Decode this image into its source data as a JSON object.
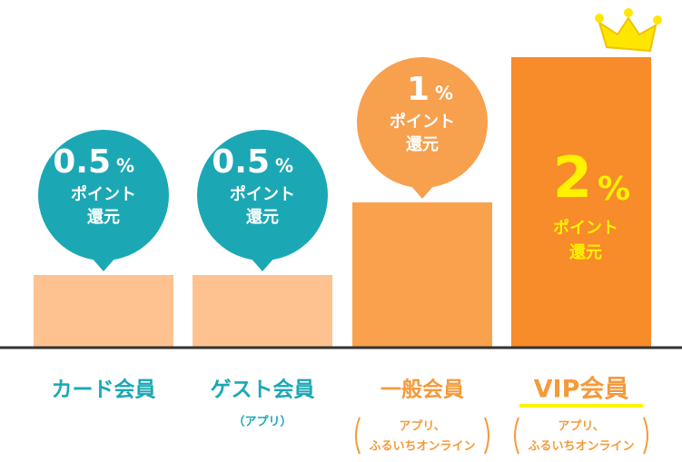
{
  "chart_data": {
    "type": "bar",
    "categories": [
      "カード会員",
      "ゲスト会員",
      "一般会員",
      "VIP会員"
    ],
    "values": [
      0.5,
      0.5,
      1,
      2
    ],
    "value_unit": "%",
    "value_caption": [
      "ポイント",
      "還元"
    ],
    "notes": [
      null,
      [
        "（アプリ）"
      ],
      [
        "アプリ、",
        "ふるいちオンライン"
      ],
      [
        "アプリ、",
        "ふるいちオンライン"
      ]
    ],
    "colors": [
      "#fdc28f",
      "#fdc28f",
      "#f9a14d",
      "#f88b2a"
    ],
    "ylim": [
      0,
      2
    ]
  }
}
